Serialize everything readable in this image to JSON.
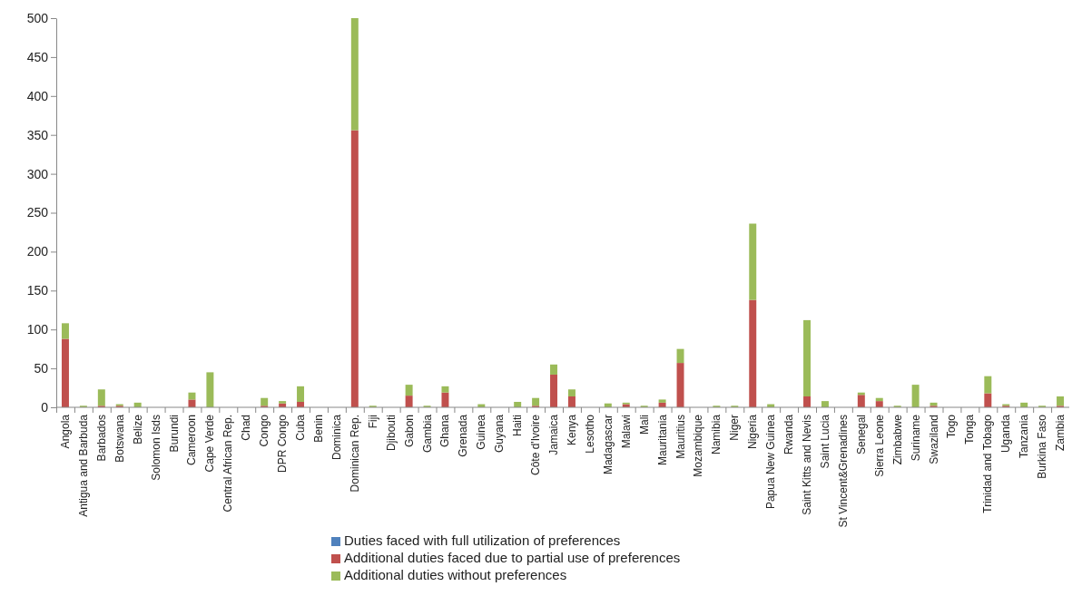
{
  "chart_data": {
    "type": "bar",
    "stacked": true,
    "categories": [
      "Angola",
      "Antigua and Barbuda",
      "Barbados",
      "Botswana",
      "Belize",
      "Solomon Isds",
      "Burundi",
      "Cameroon",
      "Cape Verde",
      "Central African Rep.",
      "Chad",
      "Congo",
      "DPR Congo",
      "Cuba",
      "Benin",
      "Dominica",
      "Dominican Rep.",
      "Fiji",
      "Djibouti",
      "Gabon",
      "Gambia",
      "Ghana",
      "Grenada",
      "Guinea",
      "Guyana",
      "Haiti",
      "Côte d'Ivoire",
      "Jamaica",
      "Kenya",
      "Lesotho",
      "Madagascar",
      "Malawi",
      "Mali",
      "Mauritania",
      "Mauritius",
      "Mozambique",
      "Namibia",
      "Niger",
      "Nigeria",
      "Papua New Guinea",
      "Rwanda",
      "Saint Kitts and Nevis",
      "Saint Lucia",
      "St Vincent&Grenadines",
      "Senegal",
      "Sierra Leone",
      "Zimbabwe",
      "Suriname",
      "Swaziland",
      "Togo",
      "Tonga",
      "Trinidad and Tobago",
      "Uganda",
      "Tanzania",
      "Burkina Faso",
      "Zambia"
    ],
    "series": [
      {
        "name": "Duties faced with full utilization of preferences",
        "color": "#4f81bd",
        "values": [
          0,
          0,
          0,
          0,
          0,
          0,
          0,
          0,
          0,
          0,
          0,
          0,
          0,
          0,
          0,
          0,
          0,
          0,
          0,
          0,
          0,
          0,
          0,
          0,
          0,
          0,
          0,
          0,
          0,
          0,
          0,
          0,
          0,
          0,
          0,
          0,
          0,
          0,
          0,
          0,
          0,
          0,
          0,
          0,
          0,
          0,
          0,
          0,
          0,
          0,
          0,
          0,
          0,
          0,
          0,
          0
        ]
      },
      {
        "name": "Additional duties faced due to partial use of preferences",
        "color": "#c0504d",
        "values": [
          88,
          0,
          2,
          2,
          0,
          0,
          0,
          10,
          0,
          0,
          0,
          2,
          5,
          7,
          0,
          0,
          356,
          0,
          0,
          15,
          0,
          19,
          0,
          0,
          0,
          0,
          2,
          42,
          14,
          0,
          0,
          4,
          0,
          6,
          57,
          0,
          0,
          0,
          138,
          0,
          0,
          14,
          0,
          0,
          16,
          8,
          0,
          0,
          2,
          0,
          0,
          18,
          2,
          0,
          0,
          2
        ]
      },
      {
        "name": "Additional duties without preferences",
        "color": "#9bbb59",
        "values": [
          20,
          2,
          21,
          2,
          6,
          0,
          0,
          9,
          45,
          0,
          0,
          10,
          3,
          20,
          0,
          0,
          144,
          2,
          0,
          14,
          2,
          8,
          0,
          4,
          0,
          7,
          10,
          13,
          9,
          0,
          5,
          2,
          2,
          4,
          18,
          0,
          2,
          2,
          98,
          4,
          0,
          98,
          8,
          0,
          3,
          4,
          2,
          29,
          4,
          0,
          0,
          22,
          2,
          6,
          2,
          12
        ]
      }
    ],
    "ylim": [
      0,
      500
    ],
    "yticks": [
      0,
      50,
      100,
      150,
      200,
      250,
      300,
      350,
      400,
      450,
      500
    ],
    "grid": false,
    "legend": "bottom"
  }
}
